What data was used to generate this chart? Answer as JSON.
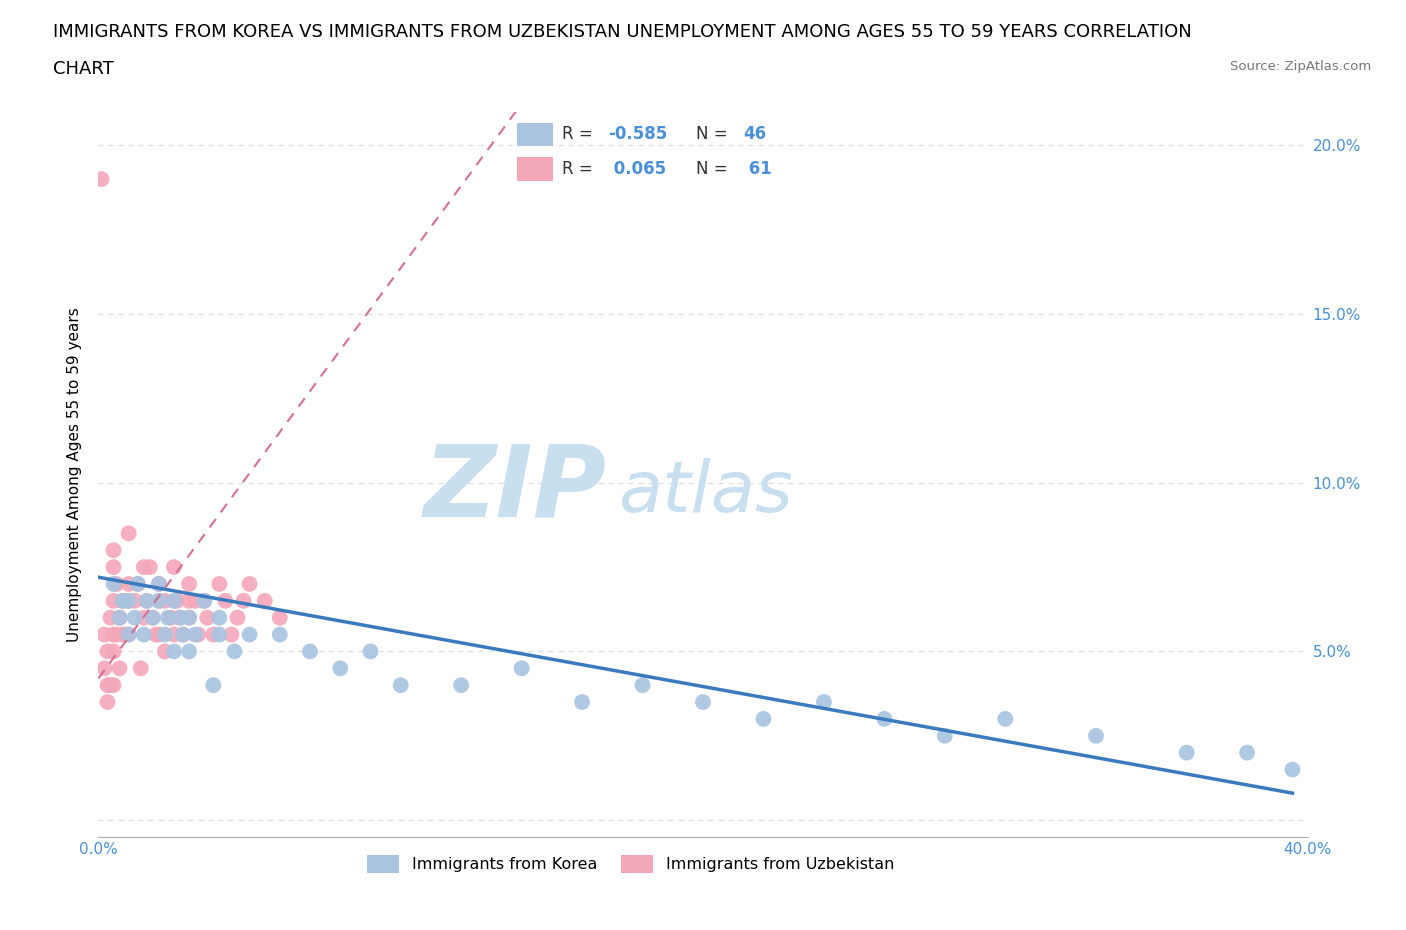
{
  "title_line1": "IMMIGRANTS FROM KOREA VS IMMIGRANTS FROM UZBEKISTAN UNEMPLOYMENT AMONG AGES 55 TO 59 YEARS CORRELATION",
  "title_line2": "CHART",
  "source": "Source: ZipAtlas.com",
  "ylabel": "Unemployment Among Ages 55 to 59 years",
  "xlim": [
    0.0,
    0.4
  ],
  "ylim": [
    -0.005,
    0.21
  ],
  "korea_color": "#a8c4e0",
  "uzbekistan_color": "#f4a7b9",
  "korea_trend_color": "#3a7abf",
  "uzbekistan_trend_color": "#d47090",
  "text_color_blue": "#4a90d9",
  "R_korea": -0.585,
  "N_korea": 46,
  "R_uzbekistan": 0.065,
  "N_uzbekistan": 61,
  "legend_korea": "Immigrants from Korea",
  "legend_uzbekistan": "Immigrants from Uzbekistan",
  "watermark_ZIP": "ZIP",
  "watermark_atlas": "atlas",
  "watermark_color": "#c8dff0",
  "background_color": "#ffffff",
  "grid_color": "#dddddd",
  "title_fontsize": 13,
  "label_fontsize": 11,
  "tick_fontsize": 11,
  "marker_size": 130,
  "korea_x": [
    0.005,
    0.007,
    0.008,
    0.01,
    0.01,
    0.012,
    0.013,
    0.015,
    0.016,
    0.018,
    0.02,
    0.02,
    0.022,
    0.023,
    0.025,
    0.025,
    0.027,
    0.028,
    0.03,
    0.03,
    0.032,
    0.035,
    0.038,
    0.04,
    0.04,
    0.045,
    0.05,
    0.06,
    0.07,
    0.08,
    0.09,
    0.1,
    0.12,
    0.14,
    0.16,
    0.18,
    0.2,
    0.22,
    0.24,
    0.26,
    0.28,
    0.3,
    0.33,
    0.36,
    0.38,
    0.395
  ],
  "korea_y": [
    0.07,
    0.06,
    0.065,
    0.055,
    0.065,
    0.06,
    0.07,
    0.055,
    0.065,
    0.06,
    0.065,
    0.07,
    0.055,
    0.06,
    0.05,
    0.065,
    0.06,
    0.055,
    0.05,
    0.06,
    0.055,
    0.065,
    0.04,
    0.055,
    0.06,
    0.05,
    0.055,
    0.055,
    0.05,
    0.045,
    0.05,
    0.04,
    0.04,
    0.045,
    0.035,
    0.04,
    0.035,
    0.03,
    0.035,
    0.03,
    0.025,
    0.03,
    0.025,
    0.02,
    0.02,
    0.015
  ],
  "uzbekistan_x": [
    0.001,
    0.002,
    0.002,
    0.003,
    0.003,
    0.003,
    0.004,
    0.004,
    0.005,
    0.005,
    0.005,
    0.005,
    0.005,
    0.005,
    0.006,
    0.006,
    0.007,
    0.007,
    0.008,
    0.008,
    0.009,
    0.01,
    0.01,
    0.01,
    0.01,
    0.012,
    0.013,
    0.014,
    0.015,
    0.015,
    0.016,
    0.017,
    0.018,
    0.019,
    0.02,
    0.02,
    0.02,
    0.022,
    0.022,
    0.024,
    0.025,
    0.025,
    0.026,
    0.027,
    0.028,
    0.03,
    0.03,
    0.03,
    0.032,
    0.033,
    0.035,
    0.036,
    0.038,
    0.04,
    0.042,
    0.044,
    0.046,
    0.048,
    0.05,
    0.055,
    0.06
  ],
  "uzbekistan_y": [
    0.19,
    0.045,
    0.055,
    0.04,
    0.05,
    0.035,
    0.06,
    0.04,
    0.08,
    0.065,
    0.075,
    0.055,
    0.05,
    0.04,
    0.07,
    0.055,
    0.06,
    0.045,
    0.065,
    0.055,
    0.055,
    0.085,
    0.07,
    0.065,
    0.055,
    0.065,
    0.07,
    0.045,
    0.075,
    0.06,
    0.065,
    0.075,
    0.06,
    0.055,
    0.07,
    0.065,
    0.055,
    0.065,
    0.05,
    0.06,
    0.075,
    0.055,
    0.065,
    0.06,
    0.055,
    0.07,
    0.065,
    0.06,
    0.065,
    0.055,
    0.065,
    0.06,
    0.055,
    0.07,
    0.065,
    0.055,
    0.06,
    0.065,
    0.07,
    0.065,
    0.06
  ],
  "korea_trend_x": [
    0.0,
    0.395
  ],
  "korea_trend_y": [
    0.072,
    0.008
  ],
  "uzbekistan_trend_x": [
    0.0,
    0.06
  ],
  "uzbekistan_trend_y": [
    0.042,
    0.115
  ]
}
